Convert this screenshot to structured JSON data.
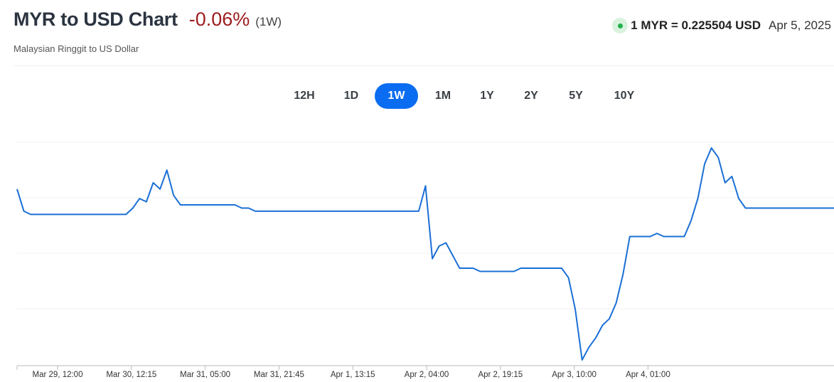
{
  "header": {
    "title": "MYR to USD Chart",
    "change": "-0.06%",
    "period": "(1W)",
    "subtitle": "Malaysian Ringgit to US Dollar",
    "rate_text": "1 MYR = 0.225504 USD",
    "rate_date": "Apr 5, 2025",
    "change_color": "#9c1c1c",
    "live_icon": "green-dot-icon"
  },
  "tabs": [
    {
      "label": "12H",
      "active": false
    },
    {
      "label": "1D",
      "active": false
    },
    {
      "label": "1W",
      "active": true
    },
    {
      "label": "1M",
      "active": false
    },
    {
      "label": "1Y",
      "active": false
    },
    {
      "label": "2Y",
      "active": false
    },
    {
      "label": "5Y",
      "active": false
    },
    {
      "label": "10Y",
      "active": false
    }
  ],
  "chart_data": {
    "type": "line",
    "title": "",
    "xlabel": "",
    "ylabel": "",
    "x_ticks": [
      "Mar 29, 12:00",
      "Mar 30, 12:15",
      "Mar 31, 05:00",
      "Mar 31, 21:45",
      "Apr 1, 13:15",
      "Apr 2, 04:00",
      "Apr 2, 19:15",
      "Apr 3, 10:00",
      "Apr 4, 01:00"
    ],
    "y_axis_labels_shown": false,
    "grid": "horizontal",
    "line_color": "#1a6fd6",
    "series": [
      {
        "values": [
          0.226,
          0.2253,
          0.2252,
          0.2252,
          0.2252,
          0.2252,
          0.2252,
          0.2252,
          0.2252,
          0.2252,
          0.2252,
          0.2252,
          0.2252,
          0.2252,
          0.2252,
          0.2252,
          0.2252,
          0.2254,
          0.2257,
          0.2256,
          0.2262,
          0.226,
          0.2266,
          0.2258,
          0.2255,
          0.2255,
          0.2255,
          0.2255,
          0.2255,
          0.2255,
          0.2255,
          0.2255,
          0.2255,
          0.2254,
          0.2254,
          0.2253,
          0.2253,
          0.2253,
          0.2253,
          0.2253,
          0.2253,
          0.2253,
          0.2253,
          0.2253,
          0.2253,
          0.2253,
          0.2253,
          0.2253,
          0.2253,
          0.2253,
          0.2253,
          0.2253,
          0.2253,
          0.2253,
          0.2253,
          0.2253,
          0.2253,
          0.2253,
          0.2253,
          0.2253,
          0.2261,
          0.2238,
          0.2242,
          0.2243,
          0.2239,
          0.2235,
          0.2235,
          0.2235,
          0.2234,
          0.2234,
          0.2234,
          0.2234,
          0.2234,
          0.2234,
          0.2235,
          0.2235,
          0.2235,
          0.2235,
          0.2235,
          0.2235,
          0.2235,
          0.2232,
          0.2222,
          0.2206,
          0.221,
          0.2213,
          0.2217,
          0.2219,
          0.2224,
          0.2233,
          0.2245,
          0.2245,
          0.2245,
          0.2245,
          0.2246,
          0.2245,
          0.2245,
          0.2245,
          0.2245,
          0.225,
          0.2257,
          0.2268,
          0.2273,
          0.227,
          0.2262,
          0.2264,
          0.2257,
          0.2254,
          0.2254,
          0.2254,
          0.2254,
          0.2254,
          0.2254,
          0.2254,
          0.2254,
          0.2254,
          0.2254,
          0.2254,
          0.2254,
          0.2254,
          0.2254
        ]
      }
    ]
  }
}
